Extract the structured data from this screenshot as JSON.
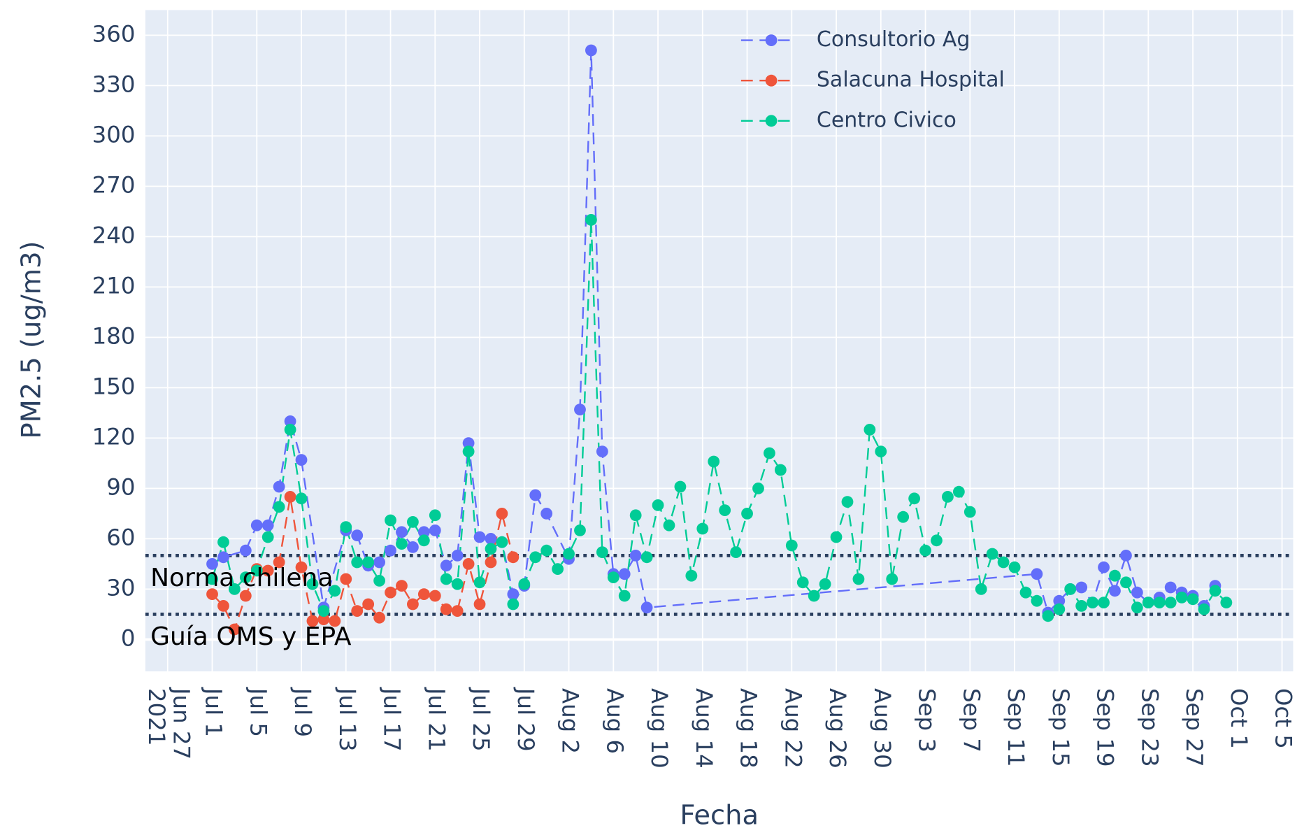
{
  "chart_data": {
    "type": "line",
    "xlabel": "Fecha",
    "ylabel": "PM2.5 (ug/m3)",
    "xlim": [
      "2021-06-25",
      "2021-10-06"
    ],
    "ylim": [
      -19,
      375
    ],
    "yticks": [
      0,
      30,
      60,
      90,
      120,
      150,
      180,
      210,
      240,
      270,
      300,
      330,
      360
    ],
    "xticks": [
      {
        "value": "2021-06-27",
        "label": "Jun 27\n2021"
      },
      {
        "value": "2021-07-01",
        "label": "Jul 1"
      },
      {
        "value": "2021-07-05",
        "label": "Jul 5"
      },
      {
        "value": "2021-07-09",
        "label": "Jul 9"
      },
      {
        "value": "2021-07-13",
        "label": "Jul 13"
      },
      {
        "value": "2021-07-17",
        "label": "Jul 17"
      },
      {
        "value": "2021-07-21",
        "label": "Jul 21"
      },
      {
        "value": "2021-07-25",
        "label": "Jul 25"
      },
      {
        "value": "2021-07-29",
        "label": "Jul 29"
      },
      {
        "value": "2021-08-02",
        "label": "Aug 2"
      },
      {
        "value": "2021-08-06",
        "label": "Aug 6"
      },
      {
        "value": "2021-08-10",
        "label": "Aug 10"
      },
      {
        "value": "2021-08-14",
        "label": "Aug 14"
      },
      {
        "value": "2021-08-18",
        "label": "Aug 18"
      },
      {
        "value": "2021-08-22",
        "label": "Aug 22"
      },
      {
        "value": "2021-08-26",
        "label": "Aug 26"
      },
      {
        "value": "2021-08-30",
        "label": "Aug 30"
      },
      {
        "value": "2021-09-03",
        "label": "Sep 3"
      },
      {
        "value": "2021-09-07",
        "label": "Sep 7"
      },
      {
        "value": "2021-09-11",
        "label": "Sep 11"
      },
      {
        "value": "2021-09-15",
        "label": "Sep 15"
      },
      {
        "value": "2021-09-19",
        "label": "Sep 19"
      },
      {
        "value": "2021-09-23",
        "label": "Sep 23"
      },
      {
        "value": "2021-09-27",
        "label": "Sep 27"
      },
      {
        "value": "2021-10-01",
        "label": "Oct 1"
      },
      {
        "value": "2021-10-05",
        "label": "Oct 5"
      }
    ],
    "grid": true,
    "legend": "top-right",
    "hlines": [
      {
        "value": 50,
        "label": "Norma chilena"
      },
      {
        "value": 15,
        "label": "Guía OMS y EPA"
      }
    ],
    "series": [
      {
        "name": "Consultorio Ag",
        "color": "#636efa",
        "x": [
          "2021-07-01",
          "2021-07-02",
          "2021-07-04",
          "2021-07-05",
          "2021-07-06",
          "2021-07-07",
          "2021-07-08",
          "2021-07-09",
          "2021-07-11",
          "2021-07-13",
          "2021-07-14",
          "2021-07-15",
          "2021-07-16",
          "2021-07-17",
          "2021-07-18",
          "2021-07-19",
          "2021-07-20",
          "2021-07-21",
          "2021-07-22",
          "2021-07-23",
          "2021-07-24",
          "2021-07-25",
          "2021-07-26",
          "2021-07-27",
          "2021-07-28",
          "2021-07-29",
          "2021-07-30",
          "2021-07-31",
          "2021-08-02",
          "2021-08-03",
          "2021-08-04",
          "2021-08-05",
          "2021-08-06",
          "2021-08-07",
          "2021-08-08",
          "2021-08-09",
          "2021-09-13",
          "2021-09-14",
          "2021-09-15",
          "2021-09-16",
          "2021-09-17",
          "2021-09-18",
          "2021-09-19",
          "2021-09-20",
          "2021-09-21",
          "2021-09-22",
          "2021-09-23",
          "2021-09-24",
          "2021-09-25",
          "2021-09-26",
          "2021-09-27",
          "2021-09-28",
          "2021-09-29"
        ],
        "values": [
          45,
          49,
          53,
          68,
          68,
          91,
          130,
          107,
          19,
          65,
          62,
          44,
          46,
          53,
          64,
          55,
          64,
          65,
          44,
          50,
          117,
          61,
          60,
          58,
          27,
          32,
          86,
          75,
          48,
          137,
          351,
          112,
          39,
          39,
          50,
          19,
          39,
          16,
          23,
          30,
          31,
          22,
          43,
          29,
          50,
          28,
          22,
          25,
          31,
          28,
          26,
          20,
          32
        ]
      },
      {
        "name": "Salacuna Hospital",
        "color": "#ef553b",
        "x": [
          "2021-07-01",
          "2021-07-02",
          "2021-07-03",
          "2021-07-04",
          "2021-07-05",
          "2021-07-06",
          "2021-07-07",
          "2021-07-08",
          "2021-07-09",
          "2021-07-10",
          "2021-07-11",
          "2021-07-12",
          "2021-07-13",
          "2021-07-14",
          "2021-07-15",
          "2021-07-16",
          "2021-07-17",
          "2021-07-18",
          "2021-07-19",
          "2021-07-20",
          "2021-07-21",
          "2021-07-22",
          "2021-07-23",
          "2021-07-24",
          "2021-07-25",
          "2021-07-26",
          "2021-07-27",
          "2021-07-28"
        ],
        "values": [
          27,
          20,
          6,
          26,
          42,
          41,
          46,
          85,
          43,
          11,
          12,
          11,
          36,
          17,
          21,
          13,
          28,
          32,
          21,
          27,
          26,
          18,
          17,
          45,
          21,
          46,
          75,
          49
        ]
      },
      {
        "name": "Centro Civico",
        "color": "#00cc96",
        "x": [
          "2021-07-01",
          "2021-07-02",
          "2021-07-03",
          "2021-07-04",
          "2021-07-05",
          "2021-07-06",
          "2021-07-07",
          "2021-07-08",
          "2021-07-09",
          "2021-07-10",
          "2021-07-11",
          "2021-07-12",
          "2021-07-13",
          "2021-07-14",
          "2021-07-15",
          "2021-07-16",
          "2021-07-17",
          "2021-07-18",
          "2021-07-19",
          "2021-07-20",
          "2021-07-21",
          "2021-07-22",
          "2021-07-23",
          "2021-07-24",
          "2021-07-25",
          "2021-07-26",
          "2021-07-27",
          "2021-07-28",
          "2021-07-29",
          "2021-07-30",
          "2021-07-31",
          "2021-08-01",
          "2021-08-02",
          "2021-08-03",
          "2021-08-04",
          "2021-08-05",
          "2021-08-06",
          "2021-08-07",
          "2021-08-08",
          "2021-08-09",
          "2021-08-10",
          "2021-08-11",
          "2021-08-12",
          "2021-08-13",
          "2021-08-14",
          "2021-08-15",
          "2021-08-16",
          "2021-08-17",
          "2021-08-18",
          "2021-08-19",
          "2021-08-20",
          "2021-08-21",
          "2021-08-22",
          "2021-08-23",
          "2021-08-24",
          "2021-08-25",
          "2021-08-26",
          "2021-08-27",
          "2021-08-28",
          "2021-08-29",
          "2021-08-30",
          "2021-08-31",
          "2021-09-01",
          "2021-09-02",
          "2021-09-03",
          "2021-09-04",
          "2021-09-05",
          "2021-09-06",
          "2021-09-07",
          "2021-09-08",
          "2021-09-09",
          "2021-09-10",
          "2021-09-11",
          "2021-09-12",
          "2021-09-13",
          "2021-09-14",
          "2021-09-15",
          "2021-09-16",
          "2021-09-17",
          "2021-09-18",
          "2021-09-19",
          "2021-09-20",
          "2021-09-21",
          "2021-09-22",
          "2021-09-23",
          "2021-09-24",
          "2021-09-25",
          "2021-09-26",
          "2021-09-27",
          "2021-09-28",
          "2021-09-29",
          "2021-09-30"
        ],
        "values": [
          36,
          58,
          30,
          37,
          41,
          61,
          79,
          125,
          84,
          33,
          17,
          29,
          67,
          46,
          46,
          35,
          71,
          57,
          70,
          59,
          74,
          36,
          33,
          112,
          34,
          54,
          58,
          21,
          33,
          49,
          53,
          42,
          51,
          65,
          250,
          52,
          37,
          26,
          74,
          49,
          80,
          68,
          91,
          38,
          66,
          106,
          77,
          52,
          75,
          90,
          111,
          101,
          56,
          34,
          26,
          33,
          61,
          82,
          36,
          125,
          112,
          36,
          73,
          84,
          53,
          59,
          85,
          88,
          76,
          30,
          51,
          46,
          43,
          28,
          23,
          14,
          18,
          30,
          20,
          22,
          22,
          38,
          34,
          19,
          22,
          22,
          22,
          25,
          24,
          18,
          29,
          22
        ]
      }
    ]
  }
}
